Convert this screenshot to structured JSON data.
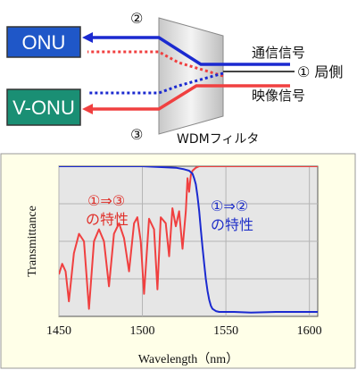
{
  "diagram": {
    "onu_label": "ONU",
    "vonu_label": "V-ONU",
    "filter_label": "WDMフィルタ",
    "comm_signal_label": "通信信号",
    "video_signal_label": "映像信号",
    "port1_label": "① 局側",
    "port2_label": "②",
    "port3_label": "③",
    "colors": {
      "onu_box": "#1f57c8",
      "vonu_box": "#1a8f74",
      "blue_path": "#1b2ad0",
      "red_path": "#f04040"
    }
  },
  "chart_data": {
    "type": "line",
    "xlabel": "Wavelength（nm）",
    "ylabel": "Transmittance",
    "xlim": [
      1450,
      1605
    ],
    "x_ticks": [
      "1450",
      "1500",
      "1550",
      "1600"
    ],
    "ylim": [
      0,
      1
    ],
    "grid": true,
    "background": "#ffffe8",
    "plot_background": "#e6e6e6",
    "series": [
      {
        "name": "①⇒③の特性",
        "color": "#f04040",
        "x": [
          1450,
          1452,
          1454,
          1456,
          1459,
          1462,
          1465,
          1468,
          1471,
          1474,
          1477,
          1480,
          1483,
          1486,
          1489,
          1492,
          1495,
          1497,
          1499,
          1501,
          1504,
          1507,
          1509,
          1511,
          1514,
          1516,
          1518,
          1520,
          1522,
          1524,
          1526,
          1527,
          1528,
          1529,
          1530,
          1531,
          1532,
          1533,
          1534,
          1535,
          1538,
          1545,
          1560,
          1580,
          1605
        ],
        "y": [
          0.28,
          0.35,
          0.3,
          0.1,
          0.42,
          0.55,
          0.5,
          0.05,
          0.5,
          0.58,
          0.5,
          0.2,
          0.55,
          0.62,
          0.52,
          0.3,
          0.62,
          0.66,
          0.5,
          0.15,
          0.65,
          0.58,
          0.18,
          0.66,
          0.62,
          0.4,
          0.72,
          0.6,
          0.7,
          0.45,
          0.7,
          0.92,
          0.83,
          0.94,
          0.97,
          0.98,
          0.99,
          0.995,
          1.0,
          1.0,
          1.0,
          1.0,
          1.0,
          1.0,
          1.0
        ]
      },
      {
        "name": "①⇒②の特性",
        "color": "#1b2ad0",
        "x": [
          1450,
          1500,
          1520,
          1525,
          1528,
          1530,
          1531,
          1532,
          1533,
          1534,
          1535,
          1536,
          1537,
          1538,
          1539,
          1540,
          1541,
          1542,
          1544,
          1546,
          1548,
          1550,
          1555,
          1565,
          1580,
          1605
        ],
        "y": [
          1.0,
          1.0,
          0.99,
          0.98,
          0.97,
          0.95,
          0.92,
          0.88,
          0.8,
          0.7,
          0.58,
          0.46,
          0.35,
          0.25,
          0.17,
          0.11,
          0.07,
          0.05,
          0.035,
          0.03,
          0.03,
          0.03,
          0.03,
          0.025,
          0.03,
          0.03
        ]
      }
    ]
  }
}
